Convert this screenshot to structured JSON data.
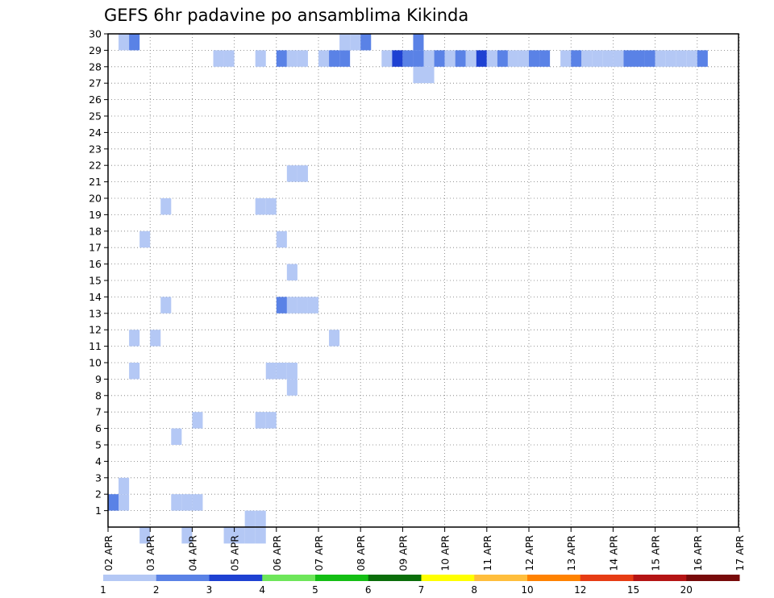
{
  "chart_data": {
    "type": "heatmap",
    "title": "GEFS 6hr padavine po ansamblima Kikinda",
    "y_ticks": [
      "1",
      "2",
      "3",
      "4",
      "5",
      "6",
      "7",
      "8",
      "9",
      "10",
      "11",
      "12",
      "13",
      "14",
      "15",
      "16",
      "17",
      "18",
      "19",
      "20",
      "21",
      "22",
      "23",
      "24",
      "25",
      "26",
      "27",
      "28",
      "29",
      "30"
    ],
    "x_tick_labels": [
      "02 APR",
      "03 APR",
      "04 APR",
      "05 APR",
      "06 APR",
      "07 APR",
      "08 APR",
      "09 APR",
      "10 APR",
      "11 APR",
      "12 APR",
      "13 APR",
      "14 APR",
      "15 APR",
      "16 APR",
      "17 APR"
    ],
    "colorbar": {
      "labels": [
        "1",
        "2",
        "3",
        "4",
        "5",
        "6",
        "7",
        "8",
        "10",
        "12",
        "15",
        "20"
      ],
      "colors": [
        "#b4c8f5",
        "#5a82e6",
        "#1e41d2",
        "#6ee65a",
        "#14be14",
        "#0a6e0a",
        "#ffff00",
        "#ffbe3c",
        "#ff8200",
        "#e63c14",
        "#b41414",
        "#780a0a"
      ]
    },
    "grid": true,
    "cells": [
      [
        1,
        30,
        1
      ],
      [
        2,
        30,
        2
      ],
      [
        10,
        29,
        1
      ],
      [
        11,
        29,
        1
      ],
      [
        14,
        29,
        1
      ],
      [
        16,
        29,
        2
      ],
      [
        17,
        29,
        1
      ],
      [
        18,
        29,
        1
      ],
      [
        17,
        22,
        1
      ],
      [
        18,
        22,
        1
      ],
      [
        14,
        20,
        1
      ],
      [
        15,
        20,
        1
      ],
      [
        5,
        20,
        1
      ],
      [
        16,
        18,
        1
      ],
      [
        3,
        18,
        1
      ],
      [
        17,
        16,
        1
      ],
      [
        17,
        14,
        1
      ],
      [
        18,
        14,
        1
      ],
      [
        19,
        14,
        1
      ],
      [
        16,
        14,
        2
      ],
      [
        5,
        14,
        1
      ],
      [
        2,
        12,
        1
      ],
      [
        4,
        12,
        1
      ],
      [
        2,
        10,
        1
      ],
      [
        15,
        10,
        1
      ],
      [
        16,
        10,
        1
      ],
      [
        17,
        10,
        1
      ],
      [
        17,
        9,
        1
      ],
      [
        8,
        7,
        1
      ],
      [
        14,
        7,
        1
      ],
      [
        15,
        7,
        1
      ],
      [
        6,
        6,
        1
      ],
      [
        6,
        2,
        1
      ],
      [
        7,
        2,
        1
      ],
      [
        8,
        2,
        1
      ],
      [
        3,
        0,
        1
      ],
      [
        7,
        0,
        1
      ],
      [
        11,
        0,
        1
      ],
      [
        12,
        0,
        1
      ],
      [
        13,
        0,
        1
      ],
      [
        14,
        0,
        1
      ],
      [
        13,
        1,
        1
      ],
      [
        14,
        1,
        1
      ],
      [
        1,
        3,
        1
      ],
      [
        1,
        2,
        1
      ],
      [
        0,
        2,
        2
      ],
      [
        21,
        12,
        1
      ],
      [
        29,
        30,
        2
      ],
      [
        20,
        29,
        1
      ],
      [
        21,
        29,
        2
      ],
      [
        22,
        29,
        2
      ],
      [
        29,
        28,
        1
      ],
      [
        30,
        28,
        1
      ],
      [
        22,
        30,
        1
      ],
      [
        23,
        30,
        1
      ],
      [
        24,
        30,
        2
      ],
      [
        26,
        29,
        1
      ],
      [
        27,
        29,
        3
      ],
      [
        28,
        29,
        2
      ],
      [
        29,
        29,
        2
      ],
      [
        30,
        29,
        1
      ],
      [
        31,
        29,
        2
      ],
      [
        32,
        29,
        1
      ],
      [
        33,
        29,
        2
      ],
      [
        34,
        29,
        1
      ],
      [
        35,
        29,
        3
      ],
      [
        36,
        29,
        1
      ],
      [
        37,
        29,
        2
      ],
      [
        38,
        29,
        1
      ],
      [
        39,
        29,
        1
      ],
      [
        40,
        29,
        2
      ],
      [
        41,
        29,
        2
      ],
      [
        43,
        29,
        1
      ],
      [
        44,
        29,
        2
      ],
      [
        45,
        29,
        1
      ],
      [
        46,
        29,
        1
      ],
      [
        47,
        29,
        1
      ],
      [
        48,
        29,
        1
      ],
      [
        49,
        29,
        2
      ],
      [
        50,
        29,
        2
      ],
      [
        51,
        29,
        2
      ],
      [
        52,
        29,
        1
      ],
      [
        53,
        29,
        1
      ],
      [
        54,
        29,
        1
      ],
      [
        55,
        29,
        1
      ],
      [
        56,
        29,
        2
      ]
    ]
  }
}
